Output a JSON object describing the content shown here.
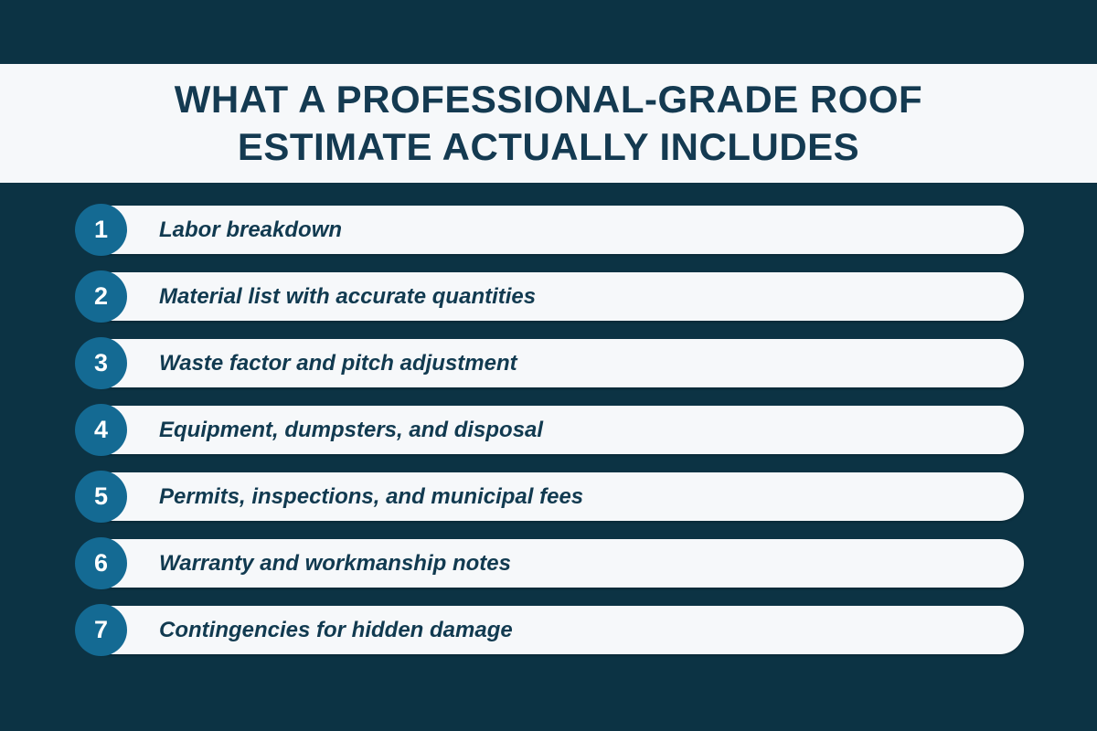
{
  "page": {
    "background_color": "#0c3344",
    "band_color": "#f6f8fa",
    "accent_color": "#146a93",
    "title_color": "#143a51",
    "item_text_color": "#113a50"
  },
  "header": {
    "title_line1": "WHAT A PROFESSIONAL-GRADE ROOF",
    "title_line2": "ESTIMATE ACTUALLY INCLUDES"
  },
  "list": {
    "items": [
      {
        "number": "1",
        "label": "Labor breakdown"
      },
      {
        "number": "2",
        "label": "Material list with accurate quantities"
      },
      {
        "number": "3",
        "label": "Waste factor and pitch adjustment"
      },
      {
        "number": "4",
        "label": "Equipment, dumpsters, and disposal"
      },
      {
        "number": "5",
        "label": "Permits, inspections, and municipal fees"
      },
      {
        "number": "6",
        "label": "Warranty and workmanship notes"
      },
      {
        "number": "7",
        "label": "Contingencies for hidden damage"
      }
    ]
  }
}
